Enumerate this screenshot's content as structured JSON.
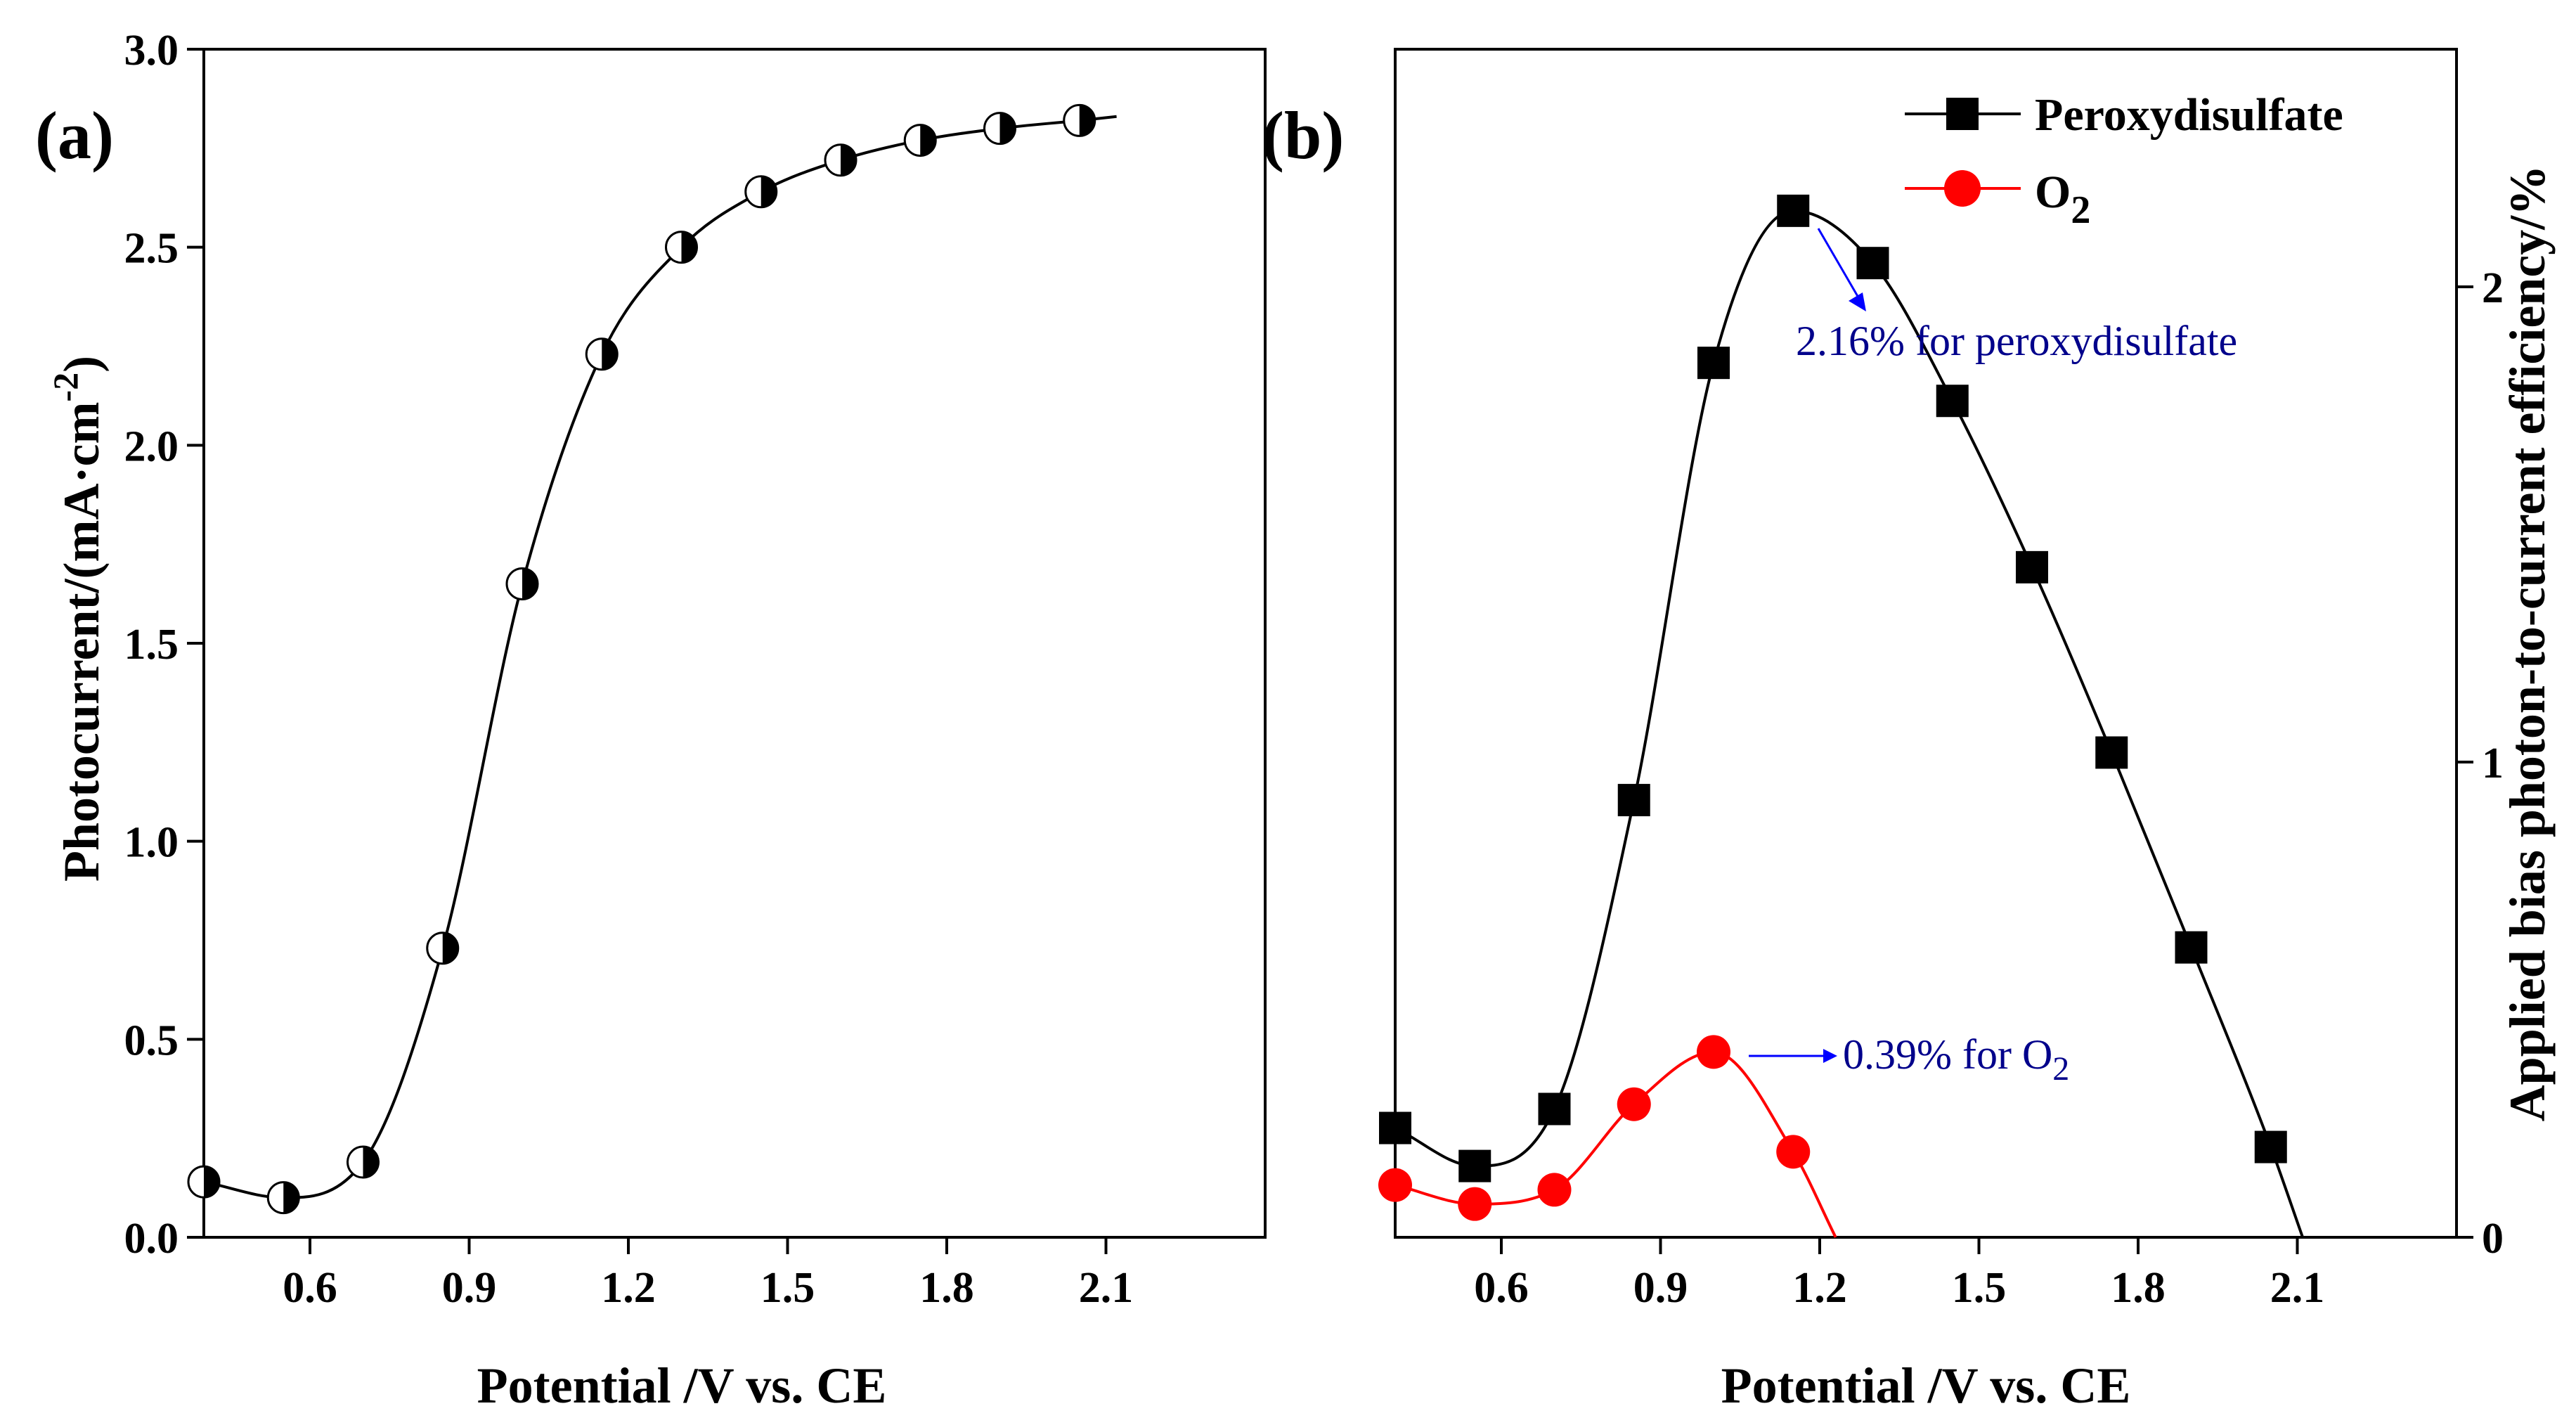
{
  "chart_data": [
    {
      "type": "line",
      "panel_label": "(a)",
      "xlabel": "Potential /V vs. CE",
      "ylabel_main": "Photocurrent/(mA·cm",
      "ylabel_exp": "-2",
      "ylabel_close": ")",
      "xlim": [
        0.4,
        2.4
      ],
      "ylim": [
        0.0,
        3.0
      ],
      "xticks": [
        "0.6",
        "0.9",
        "1.2",
        "1.5",
        "1.8",
        "2.1"
      ],
      "yticks": [
        "0.0",
        "0.5",
        "1.0",
        "1.5",
        "2.0",
        "2.5",
        "3.0"
      ],
      "series": [
        {
          "name": "Photocurrent",
          "color": "#000000",
          "marker": "half-filled circle",
          "x": [
            0.4,
            0.55,
            0.7,
            0.85,
            1.0,
            1.15,
            1.3,
            1.45,
            1.6,
            1.75,
            1.9,
            2.05
          ],
          "y": [
            0.14,
            0.1,
            0.19,
            0.73,
            1.65,
            2.23,
            2.5,
            2.64,
            2.72,
            2.77,
            2.8,
            2.82
          ],
          "curve_end": [
            2.12,
            2.83
          ]
        }
      ]
    },
    {
      "type": "line",
      "panel_label": "(b)",
      "xlabel": "Potential /V vs. CE",
      "ylabel": "Applied bias photon-to-current efficiency/%",
      "xlim": [
        0.4,
        2.4
      ],
      "ylim": [
        0.0,
        2.5
      ],
      "xticks": [
        "0.6",
        "0.9",
        "1.2",
        "1.5",
        "1.8",
        "2.1"
      ],
      "yticks": [
        "0",
        "1",
        "2"
      ],
      "legend_position": "top-right",
      "series": [
        {
          "name": "Peroxydisulfate",
          "color": "#000000",
          "marker": "square",
          "x": [
            0.4,
            0.55,
            0.7,
            0.85,
            1.0,
            1.15,
            1.3,
            1.45,
            1.6,
            1.75,
            1.9,
            2.05
          ],
          "y": [
            0.23,
            0.15,
            0.27,
            0.92,
            1.84,
            2.16,
            2.05,
            1.76,
            1.41,
            1.02,
            0.61,
            0.19
          ],
          "curve_end": [
            2.11,
            0.0
          ]
        },
        {
          "name": "O",
          "name_sub": "2",
          "color": "#ff0000",
          "marker": "circle",
          "x": [
            0.4,
            0.55,
            0.7,
            0.85,
            1.0,
            1.15
          ],
          "y": [
            0.11,
            0.07,
            0.1,
            0.28,
            0.39,
            0.18
          ],
          "curve_end": [
            1.23,
            0.0
          ]
        }
      ],
      "annotations": [
        {
          "text": "2.16% for peroxydisulfate",
          "color": "#00008b",
          "arrow_color": "#0000ff",
          "x": 1.15,
          "y": 2.16
        },
        {
          "text_main": "0.39% for O",
          "text_sub": "2",
          "color": "#00008b",
          "arrow_color": "#0000ff",
          "x": 1.0,
          "y": 0.39
        }
      ]
    }
  ]
}
